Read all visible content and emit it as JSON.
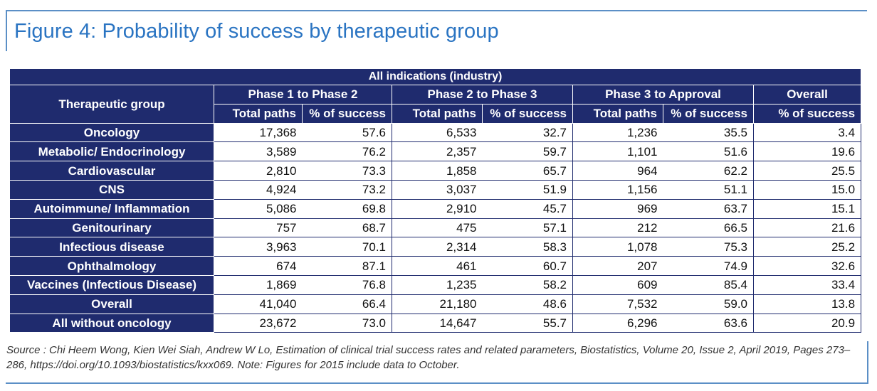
{
  "title": "Figure 4: Probability of success by therapeutic group",
  "table": {
    "super_header": "All indications (industry)",
    "group_header": "Therapeutic group",
    "phases": [
      "Phase 1 to Phase 2",
      "Phase 2 to Phase 3",
      "Phase 3 to Approval",
      "Overall"
    ],
    "sub_headers": [
      "Total paths",
      "% of success",
      "Total paths",
      "% of success",
      "Total paths",
      "% of success",
      "% of success"
    ],
    "rows": [
      {
        "group": "Oncology",
        "cells": [
          "17,368",
          "57.6",
          "6,533",
          "32.7",
          "1,236",
          "35.5",
          "3.4"
        ]
      },
      {
        "group": "Metabolic/ Endocrinology",
        "cells": [
          "3,589",
          "76.2",
          "2,357",
          "59.7",
          "1,101",
          "51.6",
          "19.6"
        ]
      },
      {
        "group": "Cardiovascular",
        "cells": [
          "2,810",
          "73.3",
          "1,858",
          "65.7",
          "964",
          "62.2",
          "25.5"
        ]
      },
      {
        "group": "CNS",
        "cells": [
          "4,924",
          "73.2",
          "3,037",
          "51.9",
          "1,156",
          "51.1",
          "15.0"
        ]
      },
      {
        "group": "Autoimmune/ Inflammation",
        "cells": [
          "5,086",
          "69.8",
          "2,910",
          "45.7",
          "969",
          "63.7",
          "15.1"
        ]
      },
      {
        "group": "Genitourinary",
        "cells": [
          "757",
          "68.7",
          "475",
          "57.1",
          "212",
          "66.5",
          "21.6"
        ]
      },
      {
        "group": "Infectious disease",
        "cells": [
          "3,963",
          "70.1",
          "2,314",
          "58.3",
          "1,078",
          "75.3",
          "25.2"
        ]
      },
      {
        "group": "Ophthalmology",
        "cells": [
          "674",
          "87.1",
          "461",
          "60.7",
          "207",
          "74.9",
          "32.6"
        ]
      },
      {
        "group": "Vaccines (Infectious Disease)",
        "cells": [
          "1,869",
          "76.8",
          "1,235",
          "58.2",
          "609",
          "85.4",
          "33.4"
        ]
      },
      {
        "group": "Overall",
        "cells": [
          "41,040",
          "66.4",
          "21,180",
          "48.6",
          "7,532",
          "59.0",
          "13.8"
        ]
      },
      {
        "group": "All without oncology",
        "cells": [
          "23,672",
          "73.0",
          "14,647",
          "55.7",
          "6,296",
          "63.6",
          "20.9"
        ]
      }
    ]
  },
  "source": "Source : Chi Heem Wong, Kien Wei Siah, Andrew W Lo, Estimation of clinical trial success rates and related parameters, Biostatistics, Volume 20, Issue 2, April 2019, Pages 273–286, https://doi.org/10.1093/biostatistics/kxx069. Note: Figures for 2015 include data to October.",
  "colors": {
    "header_bg": "#1f2b6e",
    "title": "#2a74c2",
    "frame": "#5b8fc6"
  }
}
